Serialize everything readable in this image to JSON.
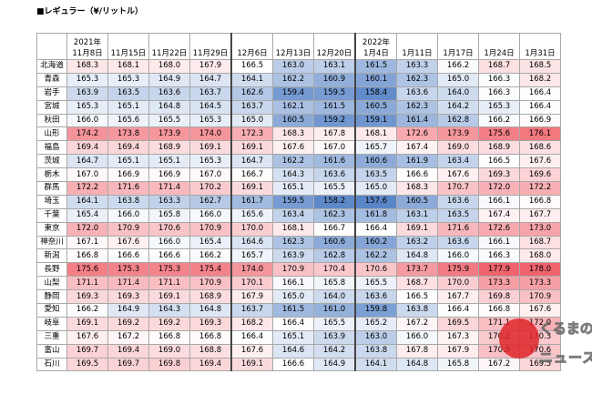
{
  "title": "■レギュラー（¥/リットル）",
  "table": {
    "columns": [
      {
        "year": "2021年",
        "date": "11月8日"
      },
      {
        "date": "11月15日"
      },
      {
        "date": "11月22日"
      },
      {
        "date": "11月29日"
      },
      {
        "date": "12月6日"
      },
      {
        "date": "12月13日"
      },
      {
        "date": "12月20日"
      },
      {
        "year": "2022年",
        "date": "1月4日"
      },
      {
        "date": "1月11日"
      },
      {
        "date": "1月17日"
      },
      {
        "date": "1月24日"
      },
      {
        "date": "1月31日"
      }
    ],
    "rows": [
      {
        "label": "北海道",
        "values": [
          "168.3",
          "168.1",
          "168.0",
          "167.9",
          "166.5",
          "163.0",
          "163.1",
          "161.5",
          "163.3",
          "166.2",
          "168.7",
          "168.5"
        ]
      },
      {
        "label": "青森",
        "values": [
          "165.3",
          "165.3",
          "164.9",
          "164.7",
          "164.1",
          "162.2",
          "160.9",
          "160.1",
          "162.3",
          "165.0",
          "166.3",
          "168.2"
        ]
      },
      {
        "label": "岩手",
        "values": [
          "163.9",
          "163.5",
          "163.6",
          "163.7",
          "162.6",
          "159.4",
          "159.5",
          "158.4",
          "163.6",
          "164.0",
          "166.3",
          "166.4"
        ]
      },
      {
        "label": "宮城",
        "values": [
          "165.3",
          "165.1",
          "164.8",
          "164.5",
          "163.7",
          "162.1",
          "161.5",
          "160.5",
          "162.3",
          "164.2",
          "165.3",
          "166.4"
        ]
      },
      {
        "label": "秋田",
        "values": [
          "166.0",
          "165.6",
          "165.5",
          "165.3",
          "165.0",
          "160.5",
          "159.2",
          "159.1",
          "161.4",
          "162.8",
          "166.2",
          "166.9"
        ]
      },
      {
        "label": "山形",
        "values": [
          "174.2",
          "173.8",
          "173.9",
          "174.0",
          "172.3",
          "168.3",
          "167.8",
          "168.1",
          "172.6",
          "173.9",
          "175.6",
          "176.1"
        ]
      },
      {
        "label": "福島",
        "values": [
          "169.4",
          "169.4",
          "168.9",
          "169.1",
          "169.1",
          "167.6",
          "167.0",
          "165.7",
          "167.4",
          "169.0",
          "168.9",
          "168.6"
        ]
      },
      {
        "label": "茨城",
        "values": [
          "164.7",
          "165.1",
          "165.1",
          "165.3",
          "164.7",
          "162.2",
          "161.6",
          "160.6",
          "161.9",
          "163.4",
          "166.5",
          "167.6"
        ]
      },
      {
        "label": "栃木",
        "values": [
          "167.0",
          "166.9",
          "166.9",
          "167.0",
          "166.7",
          "164.3",
          "163.6",
          "163.5",
          "166.6",
          "167.6",
          "169.3",
          "169.6"
        ]
      },
      {
        "label": "群馬",
        "values": [
          "172.2",
          "171.6",
          "171.4",
          "170.2",
          "169.1",
          "165.1",
          "165.5",
          "165.0",
          "168.3",
          "170.7",
          "172.0",
          "172.2"
        ]
      },
      {
        "label": "埼玉",
        "values": [
          "164.1",
          "163.8",
          "163.3",
          "162.7",
          "161.7",
          "159.5",
          "158.2",
          "157.6",
          "160.5",
          "163.6",
          "166.1",
          "166.8"
        ]
      },
      {
        "label": "千葉",
        "values": [
          "165.4",
          "166.0",
          "165.8",
          "166.0",
          "165.6",
          "163.4",
          "162.3",
          "161.8",
          "163.1",
          "163.5",
          "167.4",
          "167.7"
        ]
      },
      {
        "label": "東京",
        "values": [
          "172.0",
          "170.9",
          "170.6",
          "170.9",
          "170.0",
          "168.1",
          "166.7",
          "166.4",
          "169.1",
          "171.6",
          "172.6",
          "173.0"
        ]
      },
      {
        "label": "神奈川",
        "values": [
          "167.1",
          "167.6",
          "166.0",
          "165.4",
          "164.6",
          "162.3",
          "160.6",
          "160.2",
          "163.2",
          "163.6",
          "166.1",
          "168.7"
        ]
      },
      {
        "label": "新潟",
        "values": [
          "166.8",
          "166.6",
          "166.6",
          "166.2",
          "165.7",
          "163.9",
          "162.8",
          "162.2",
          "164.8",
          "166.0",
          "166.3",
          "168.0"
        ]
      },
      {
        "label": "長野",
        "values": [
          "175.6",
          "175.3",
          "175.3",
          "175.4",
          "174.0",
          "170.9",
          "170.4",
          "170.6",
          "173.7",
          "175.9",
          "177.9",
          "178.0"
        ]
      },
      {
        "label": "山梨",
        "values": [
          "171.1",
          "171.4",
          "171.1",
          "170.9",
          "170.1",
          "166.1",
          "165.8",
          "165.5",
          "168.7",
          "170.0",
          "173.3",
          "173.3"
        ]
      },
      {
        "label": "静岡",
        "values": [
          "169.3",
          "169.3",
          "169.1",
          "168.9",
          "167.9",
          "165.0",
          "164.0",
          "163.6",
          "166.5",
          "167.7",
          "169.8",
          "170.9"
        ]
      },
      {
        "label": "愛知",
        "values": [
          "166.2",
          "164.9",
          "164.3",
          "164.8",
          "163.7",
          "161.5",
          "161.0",
          "159.8",
          "163.8",
          "166.4",
          "166.8",
          "167.6"
        ]
      },
      {
        "label": "岐阜",
        "values": [
          "169.1",
          "169.2",
          "169.2",
          "169.3",
          "168.2",
          "166.4",
          "165.5",
          "165.2",
          "167.2",
          "169.5",
          "171.1",
          "172.0"
        ]
      },
      {
        "label": "三重",
        "values": [
          "167.6",
          "167.2",
          "166.8",
          "166.8",
          "166.4",
          "165.1",
          "163.9",
          "163.0",
          "166.0",
          "167.3",
          "170.2",
          "170.3"
        ]
      },
      {
        "label": "富山",
        "values": [
          "169.7",
          "169.4",
          "169.0",
          "168.8",
          "167.6",
          "164.6",
          "164.2",
          "163.8",
          "167.8",
          "167.9",
          "170.9",
          "170.6"
        ]
      },
      {
        "label": "石川",
        "values": [
          "169.5",
          "169.7",
          "169.8",
          "169.4",
          "169.1",
          "166.6",
          "164.9",
          "164.1",
          "164.8",
          "165.8",
          "167.2",
          "169.5"
        ]
      }
    ]
  },
  "logo": {
    "line1": "くるまの",
    "line2": "ニュース"
  }
}
